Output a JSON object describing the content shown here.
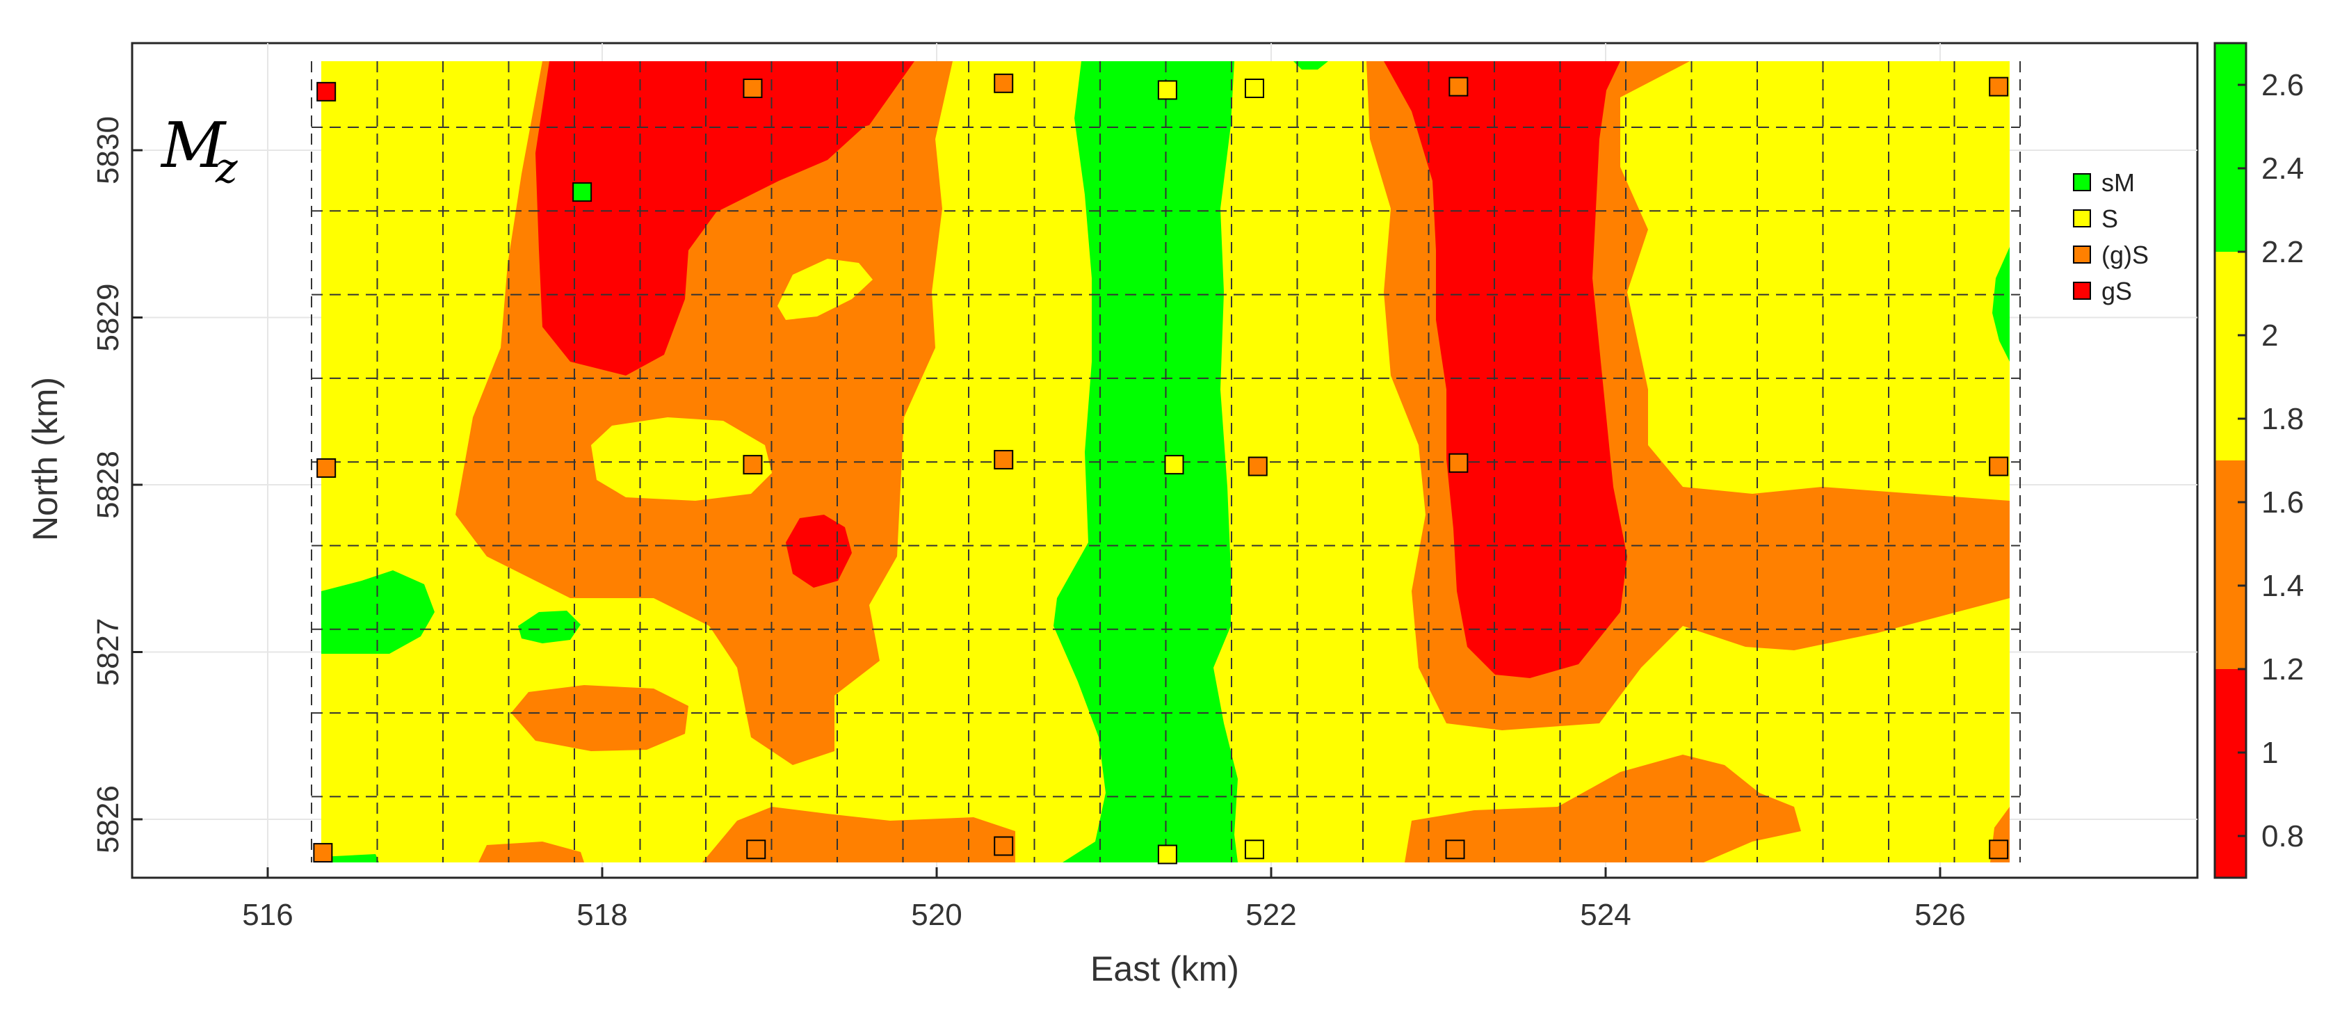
{
  "chart_data": {
    "type": "heatmap",
    "panel_label": "M",
    "panel_label_sub": "z",
    "xlabel": "East (km)",
    "ylabel": "North (km)",
    "xlim": [
      515.2,
      527.5
    ],
    "ylim": [
      5825.65,
      5830.6
    ],
    "x_ticks": [
      "516",
      "518",
      "520",
      "522",
      "524",
      "526"
    ],
    "x_tick_values": [
      516,
      518,
      520,
      522,
      524,
      526
    ],
    "y_ticks": [
      "5830",
      "5829",
      "5828",
      "5827",
      "5826"
    ],
    "y_tick_values": [
      5830,
      5829,
      5828,
      5827,
      5826
    ],
    "grid": true,
    "colorbar": {
      "ticks": [
        "2.6",
        "2.4",
        "2.2",
        "2",
        "1.8",
        "1.6",
        "1.4",
        "1.2",
        "1",
        "0.8"
      ],
      "tick_values": [
        2.6,
        2.4,
        2.2,
        2.0,
        1.8,
        1.6,
        1.4,
        1.2,
        1.0,
        0.8
      ],
      "range": [
        0.7,
        2.7
      ],
      "bands": [
        {
          "from": 0.7,
          "to": 1.2,
          "color": "#ff0000"
        },
        {
          "from": 1.2,
          "to": 1.7,
          "color": "#ff8000"
        },
        {
          "from": 1.7,
          "to": 2.2,
          "color": "#ffff00"
        },
        {
          "from": 2.2,
          "to": 2.7,
          "color": "#00ff00"
        }
      ]
    },
    "classes": [
      {
        "name": "sM",
        "color": "#00ff00"
      },
      {
        "name": "S",
        "color": "#ffff00"
      },
      {
        "name": "(g)S",
        "color": "#ff8000"
      },
      {
        "name": "gS",
        "color": "#ff0000"
      }
    ],
    "legend_position": "top-right",
    "samples": [
      {
        "x": 516.35,
        "y": 5830.35,
        "class": "gS"
      },
      {
        "x": 518.9,
        "y": 5830.37,
        "class": "(g)S"
      },
      {
        "x": 520.4,
        "y": 5830.4,
        "class": "(g)S"
      },
      {
        "x": 521.38,
        "y": 5830.36,
        "class": "S"
      },
      {
        "x": 521.9,
        "y": 5830.37,
        "class": "S"
      },
      {
        "x": 523.12,
        "y": 5830.38,
        "class": "(g)S"
      },
      {
        "x": 526.35,
        "y": 5830.38,
        "class": "(g)S"
      },
      {
        "x": 517.88,
        "y": 5829.75,
        "class": "sM"
      },
      {
        "x": 516.35,
        "y": 5828.1,
        "class": "(g)S"
      },
      {
        "x": 518.9,
        "y": 5828.12,
        "class": "(g)S"
      },
      {
        "x": 520.4,
        "y": 5828.15,
        "class": "(g)S"
      },
      {
        "x": 521.42,
        "y": 5828.12,
        "class": "S"
      },
      {
        "x": 521.92,
        "y": 5828.11,
        "class": "(g)S"
      },
      {
        "x": 523.12,
        "y": 5828.13,
        "class": "(g)S"
      },
      {
        "x": 526.35,
        "y": 5828.11,
        "class": "(g)S"
      },
      {
        "x": 516.33,
        "y": 5825.8,
        "class": "(g)S"
      },
      {
        "x": 518.92,
        "y": 5825.82,
        "class": "(g)S"
      },
      {
        "x": 520.4,
        "y": 5825.84,
        "class": "(g)S"
      },
      {
        "x": 521.38,
        "y": 5825.79,
        "class": "S"
      },
      {
        "x": 521.9,
        "y": 5825.82,
        "class": "S"
      },
      {
        "x": 523.1,
        "y": 5825.82,
        "class": "(g)S"
      },
      {
        "x": 526.35,
        "y": 5825.82,
        "class": "(g)S"
      }
    ]
  }
}
